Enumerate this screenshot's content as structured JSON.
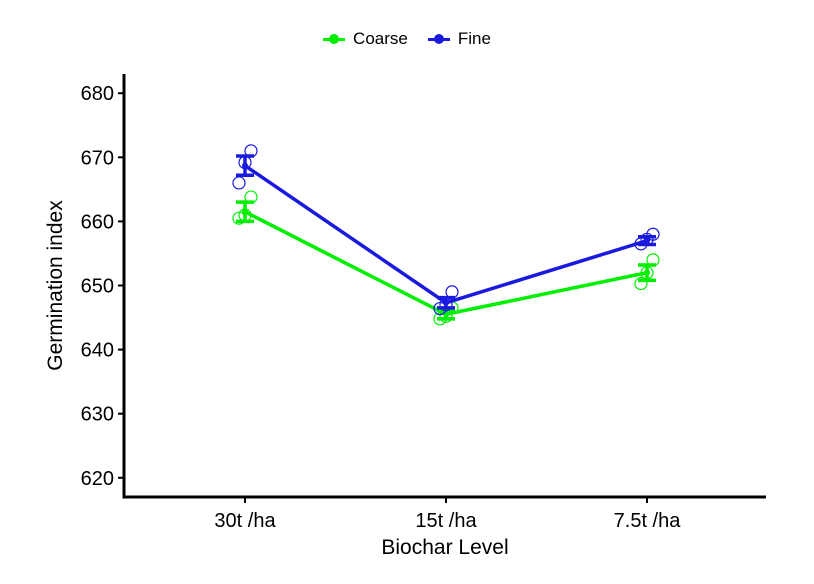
{
  "chart_data": {
    "type": "line",
    "title": "",
    "xlabel": "Biochar Level",
    "ylabel": "Germination index",
    "categories": [
      "30t /ha",
      "15t /ha",
      "7.5t /ha"
    ],
    "ylim": [
      617,
      683
    ],
    "yticks": [
      620,
      630,
      640,
      650,
      660,
      670,
      680
    ],
    "legend_position": "top-center",
    "grid": false,
    "series": [
      {
        "name": "Coarse",
        "color": "#00ee00",
        "values": [
          661.5,
          645.5,
          652.0
        ],
        "error": [
          1.5,
          0.7,
          1.2
        ],
        "points": [
          [
            660.5,
            661.0,
            663.8
          ],
          [
            644.8,
            645.2,
            646.5
          ],
          [
            650.3,
            652.0,
            654.0
          ]
        ]
      },
      {
        "name": "Fine",
        "color": "#1a1adf",
        "values": [
          668.7,
          647.3,
          657.0
        ],
        "error": [
          1.5,
          0.8,
          0.6
        ],
        "points": [
          [
            666.0,
            669.2,
            671.0
          ],
          [
            646.4,
            647.0,
            649.0
          ],
          [
            656.5,
            657.2,
            658.0
          ]
        ]
      }
    ]
  }
}
